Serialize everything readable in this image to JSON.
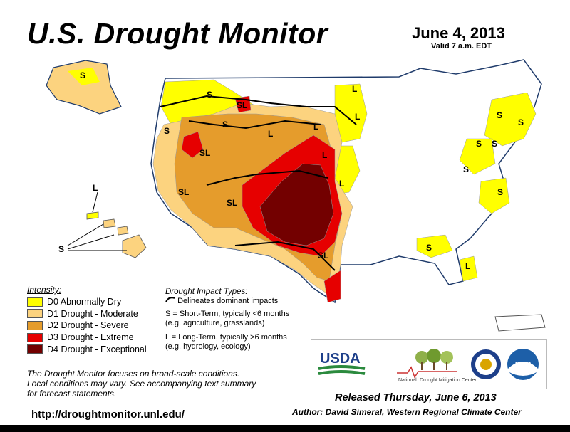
{
  "title": "U.S. Drought Monitor",
  "date": "June 4, 2013",
  "valid": "Valid 7 a.m. EDT",
  "legend": {
    "title": "Intensity:",
    "items": [
      {
        "label": "D0 Abnormally Dry",
        "color": "#ffff00"
      },
      {
        "label": "D1 Drought - Moderate",
        "color": "#fcd37f"
      },
      {
        "label": "D2 Drought - Severe",
        "color": "#e59c2c"
      },
      {
        "label": "D3 Drought - Extreme",
        "color": "#e60000"
      },
      {
        "label": "D4 Drought - Exceptional",
        "color": "#730000"
      }
    ]
  },
  "impact": {
    "title": "Drought Impact Types:",
    "delineates": "Delineates dominant impacts",
    "short_term": "S = Short-Term, typically <6 months",
    "short_example": "(e.g. agriculture, grasslands)",
    "long_term": "L = Long-Term, typically >6 months",
    "long_example": "(e.g. hydrology, ecology)"
  },
  "focus_text": [
    "The Drought Monitor focuses on broad-scale conditions.",
    "Local conditions may vary. See accompanying text summary",
    "for forecast statements."
  ],
  "url": "http://droughtmonitor.unl.edu/",
  "released": "Released Thursday, June 6, 2013",
  "author": "Author: David Simeral, Western Regional Climate Center",
  "logos": {
    "usda": "USDA",
    "ndmc_line1": "National",
    "ndmc_line2": "Drought Mitigation Center",
    "noaa": "NOAA"
  },
  "map_labels": {
    "S": "S",
    "L": "L",
    "SL": "SL"
  }
}
